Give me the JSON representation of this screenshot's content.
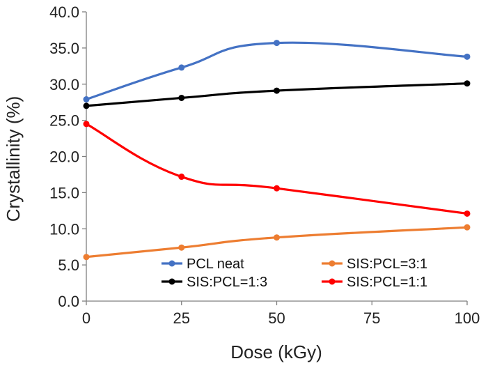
{
  "chart_data": {
    "type": "line",
    "title": "",
    "xlabel": "Dose (kGy)",
    "ylabel": "Crystallinity (%)",
    "xlim": [
      0,
      100
    ],
    "ylim": [
      0,
      40
    ],
    "x_ticks": [
      "0",
      "25",
      "50",
      "75",
      "100"
    ],
    "y_ticks": [
      "0.0",
      "5.0",
      "10.0",
      "15.0",
      "20.0",
      "25.0",
      "30.0",
      "35.0",
      "40.0"
    ],
    "grid": false,
    "legend_position": "bottom-inside",
    "series": [
      {
        "name": "PCL neat",
        "color": "#4472C4",
        "x": [
          0,
          25,
          50,
          100
        ],
        "values": [
          27.9,
          32.3,
          35.7,
          33.8
        ]
      },
      {
        "name": "SIS:PCL=3:1",
        "color": "#ED7D31",
        "x": [
          0,
          25,
          50,
          100
        ],
        "values": [
          6.1,
          7.4,
          8.8,
          10.2
        ]
      },
      {
        "name": "SIS:PCL=1:3",
        "color": "#000000",
        "x": [
          0,
          25,
          50,
          100
        ],
        "values": [
          27.0,
          28.1,
          29.1,
          30.1
        ]
      },
      {
        "name": "SIS:PCL=1:1",
        "color": "#FF0000",
        "x": [
          0,
          25,
          50,
          100
        ],
        "values": [
          24.5,
          17.2,
          15.6,
          12.1
        ]
      }
    ]
  }
}
